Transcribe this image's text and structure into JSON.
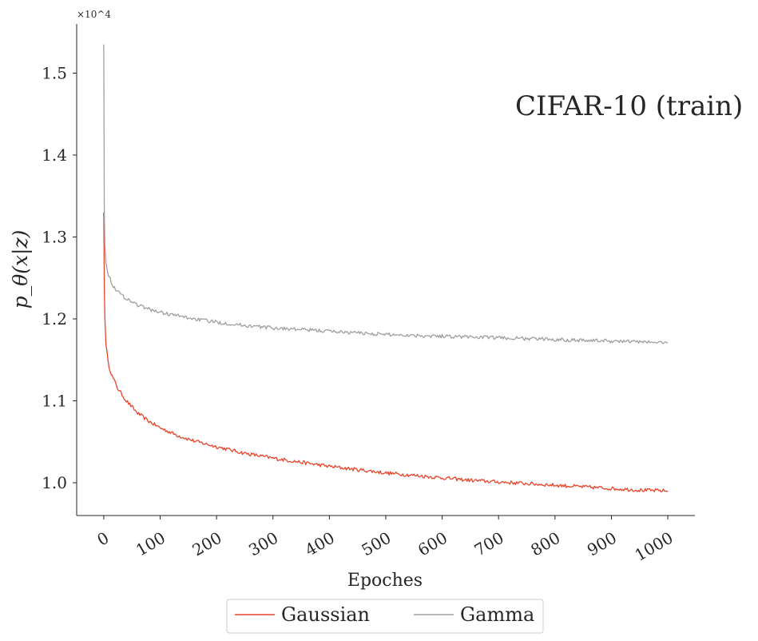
{
  "chart_data": {
    "type": "line",
    "title": "",
    "annotation": "CIFAR-10 (train)",
    "xlabel": "Epoches",
    "ylabel": "p_θ(x|z)",
    "y_offset_label": "×10^4",
    "xlim": [
      -48,
      1048
    ],
    "ylim": [
      0.96,
      1.56
    ],
    "x_ticks": [
      0,
      100,
      200,
      300,
      400,
      500,
      600,
      700,
      800,
      900,
      1000
    ],
    "y_ticks": [
      1.0,
      1.1,
      1.2,
      1.3,
      1.4,
      1.5
    ],
    "y_tick_labels": [
      "1.0",
      "1.1",
      "1.2",
      "1.3",
      "1.4",
      "1.5"
    ],
    "legend_position": "bottom-center",
    "series": [
      {
        "name": "Gaussian",
        "color": "#e8442a",
        "x": [
          0,
          1,
          2,
          4,
          8,
          15,
          25,
          40,
          60,
          80,
          100,
          130,
          160,
          200,
          250,
          300,
          350,
          400,
          450,
          500,
          550,
          600,
          650,
          700,
          750,
          800,
          850,
          900,
          950,
          1000
        ],
        "y": [
          1.33,
          1.24,
          1.2,
          1.17,
          1.145,
          1.13,
          1.115,
          1.1,
          1.085,
          1.075,
          1.067,
          1.058,
          1.051,
          1.044,
          1.036,
          1.03,
          1.025,
          1.02,
          1.016,
          1.012,
          1.009,
          1.006,
          1.003,
          1.001,
          0.999,
          0.997,
          0.995,
          0.993,
          0.991,
          0.99
        ]
      },
      {
        "name": "Gamma",
        "color": "#a0a0a0",
        "x": [
          0,
          1,
          2,
          4,
          8,
          15,
          25,
          40,
          60,
          80,
          100,
          130,
          160,
          200,
          250,
          300,
          350,
          400,
          450,
          500,
          550,
          600,
          650,
          700,
          750,
          800,
          850,
          900,
          950,
          1000
        ],
        "y": [
          1.535,
          1.33,
          1.29,
          1.27,
          1.255,
          1.242,
          1.233,
          1.225,
          1.217,
          1.212,
          1.208,
          1.204,
          1.2,
          1.196,
          1.192,
          1.189,
          1.187,
          1.185,
          1.183,
          1.181,
          1.18,
          1.179,
          1.178,
          1.177,
          1.176,
          1.175,
          1.174,
          1.173,
          1.172,
          1.171
        ]
      }
    ]
  }
}
